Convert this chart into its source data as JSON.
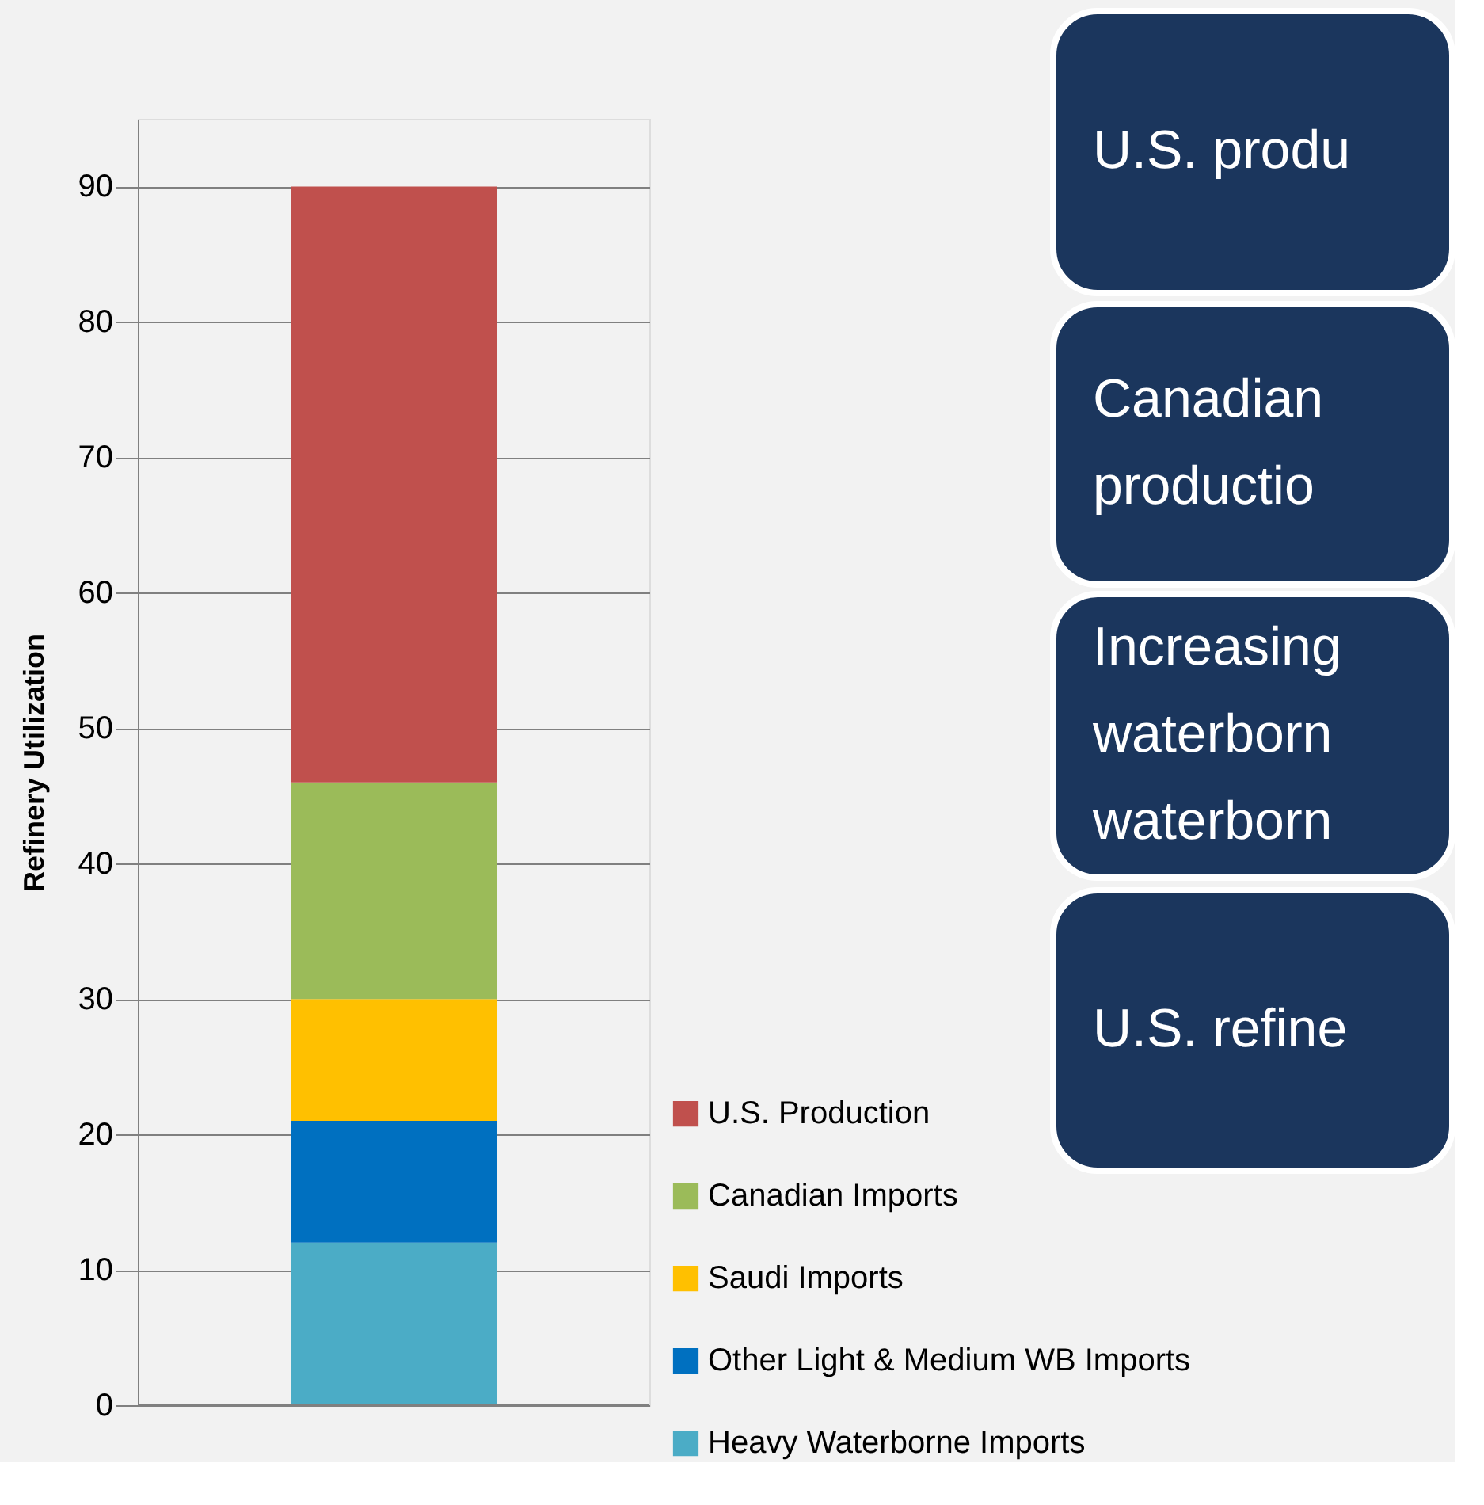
{
  "chart_data": {
    "type": "bar",
    "stacked": true,
    "ylabel": "Refinery Utilization",
    "categories": [
      null
    ],
    "series": [
      {
        "name": "Heavy Waterborne Imports",
        "color": "#4bacc6",
        "values": [
          12
        ]
      },
      {
        "name": "Other Light & Medium WB Imports",
        "color": "#0070c0",
        "values": [
          9
        ]
      },
      {
        "name": "Saudi Imports",
        "color": "#ffc000",
        "values": [
          9
        ]
      },
      {
        "name": "Canadian Imports",
        "color": "#9bbb59",
        "values": [
          16
        ]
      },
      {
        "name": "U.S. Production",
        "color": "#c0504d",
        "values": [
          44
        ]
      }
    ],
    "ylim": [
      0,
      95
    ],
    "yticks": [
      0,
      10,
      20,
      30,
      40,
      50,
      60,
      70,
      80,
      90
    ],
    "grid": "y",
    "legend": "bottom right",
    "annotations": [
      "U.S. produ",
      "Canadian\nproductio",
      "Increasing\nwaterborn\nwaterborn",
      "U.S. refine"
    ]
  }
}
